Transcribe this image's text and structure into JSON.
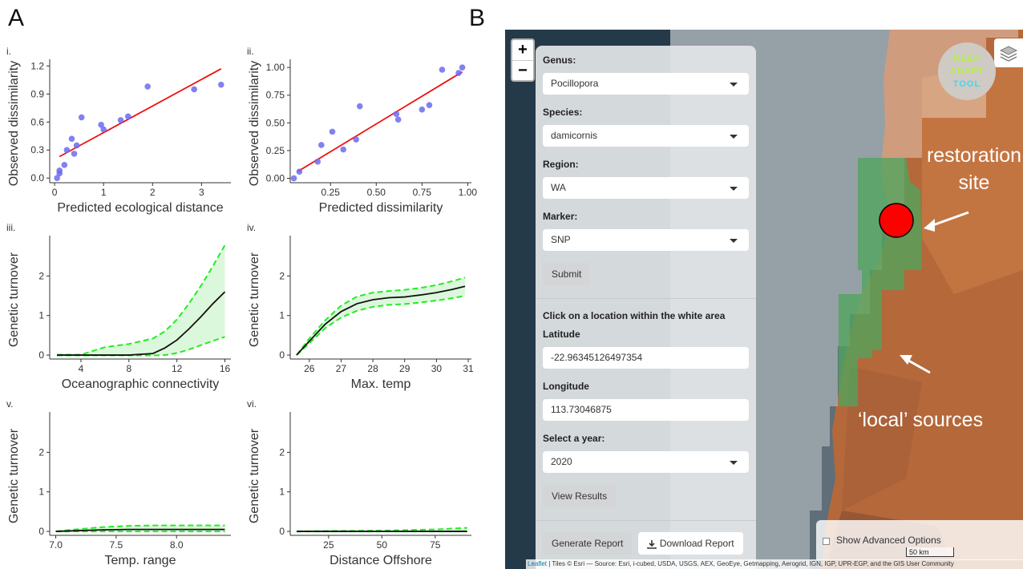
{
  "panel_labels": {
    "a": "A",
    "b": "B"
  },
  "colors": {
    "points": "#6b6bf0",
    "fit_line": "#f01010",
    "spline": "#111111",
    "ci_line": "#22ee22",
    "ci_fill": "#d8f7d8"
  },
  "chart_data": [
    {
      "id": "i",
      "panel_label": "i.",
      "type": "scatter",
      "xlabel": "Predicted ecological distance",
      "ylabel": "Observed dissimilarity",
      "xlim": [
        -0.1,
        3.6
      ],
      "ylim": [
        -0.05,
        1.22
      ],
      "xticks": [
        "0",
        "1",
        "2",
        "3"
      ],
      "yticks": [
        "0.0",
        "0.3",
        "0.6",
        "0.9",
        "1.2"
      ],
      "points": [
        [
          0.05,
          0.0
        ],
        [
          0.1,
          0.05
        ],
        [
          0.1,
          0.08
        ],
        [
          0.2,
          0.14
        ],
        [
          0.25,
          0.3
        ],
        [
          0.35,
          0.42
        ],
        [
          0.4,
          0.26
        ],
        [
          0.45,
          0.35
        ],
        [
          0.55,
          0.65
        ],
        [
          0.95,
          0.57
        ],
        [
          1.0,
          0.52
        ],
        [
          1.35,
          0.62
        ],
        [
          1.5,
          0.66
        ],
        [
          1.9,
          0.98
        ],
        [
          2.85,
          0.95
        ],
        [
          3.4,
          1.0
        ]
      ],
      "fit": [
        [
          0.1,
          0.23
        ],
        [
          3.4,
          1.17
        ]
      ]
    },
    {
      "id": "ii",
      "panel_label": "ii.",
      "type": "scatter",
      "xlabel": "Predicted dissimilarity",
      "ylabel": "Observed dissimilarity",
      "xlim": [
        0.03,
        1.02
      ],
      "ylim": [
        -0.04,
        1.03
      ],
      "xticks": [
        "0.25",
        "0.50",
        "0.75",
        "1.00"
      ],
      "yticks": [
        "0.00",
        "0.25",
        "0.50",
        "0.75",
        "1.00"
      ],
      "points": [
        [
          0.05,
          0.0
        ],
        [
          0.08,
          0.06
        ],
        [
          0.18,
          0.15
        ],
        [
          0.2,
          0.3
        ],
        [
          0.26,
          0.42
        ],
        [
          0.32,
          0.26
        ],
        [
          0.39,
          0.35
        ],
        [
          0.41,
          0.65
        ],
        [
          0.61,
          0.58
        ],
        [
          0.62,
          0.53
        ],
        [
          0.75,
          0.62
        ],
        [
          0.79,
          0.66
        ],
        [
          0.86,
          0.98
        ],
        [
          0.95,
          0.95
        ],
        [
          0.97,
          1.0
        ]
      ],
      "fit": [
        [
          0.07,
          0.06
        ],
        [
          0.97,
          0.96
        ]
      ]
    },
    {
      "id": "iii",
      "panel_label": "iii.",
      "type": "line",
      "xlabel": "Oceanographic connectivity",
      "ylabel": "Genetic turnover",
      "xlim": [
        1.4,
        16.5
      ],
      "ylim": [
        -0.1,
        2.9
      ],
      "xticks": [
        "4",
        "8",
        "12",
        "16"
      ],
      "yticks": [
        "0",
        "1",
        "2"
      ],
      "x": [
        2,
        4,
        6,
        8,
        10,
        11,
        12,
        13,
        14,
        15,
        16
      ],
      "mean": [
        0,
        0,
        0,
        0,
        0.04,
        0.18,
        0.38,
        0.66,
        0.97,
        1.3,
        1.6
      ],
      "upper": [
        0.01,
        0.01,
        0.2,
        0.28,
        0.42,
        0.6,
        0.9,
        1.3,
        1.75,
        2.25,
        2.78
      ],
      "lower": [
        -0.01,
        -0.01,
        -0.01,
        -0.01,
        -0.01,
        0,
        0.05,
        0.14,
        0.25,
        0.36,
        0.46
      ]
    },
    {
      "id": "iv",
      "panel_label": "iv.",
      "type": "line",
      "xlabel": "Max. temp",
      "ylabel": "Genetic turnover",
      "xlim": [
        25.4,
        31.1
      ],
      "ylim": [
        -0.1,
        2.9
      ],
      "xticks": [
        "26",
        "27",
        "28",
        "29",
        "30",
        "31"
      ],
      "yticks": [
        "0",
        "1",
        "2"
      ],
      "x": [
        25.6,
        26,
        26.5,
        27,
        27.5,
        28,
        28.5,
        29,
        29.5,
        30,
        30.5,
        30.9
      ],
      "mean": [
        0,
        0.35,
        0.78,
        1.1,
        1.3,
        1.4,
        1.45,
        1.47,
        1.52,
        1.58,
        1.66,
        1.74
      ],
      "upper": [
        0,
        0.42,
        0.88,
        1.25,
        1.48,
        1.58,
        1.62,
        1.65,
        1.7,
        1.77,
        1.87,
        1.96
      ],
      "lower": [
        0,
        0.3,
        0.68,
        0.95,
        1.12,
        1.22,
        1.27,
        1.29,
        1.33,
        1.38,
        1.44,
        1.5
      ]
    },
    {
      "id": "v",
      "panel_label": "v.",
      "type": "line",
      "xlabel": "Temp. range",
      "ylabel": "Genetic turnover",
      "xlim": [
        6.95,
        8.45
      ],
      "ylim": [
        -0.1,
        2.9
      ],
      "xticks": [
        "7.0",
        "7.5",
        "8.0"
      ],
      "yticks": [
        "0",
        "1",
        "2"
      ],
      "x": [
        7.0,
        7.2,
        7.4,
        7.6,
        7.8,
        8.0,
        8.2,
        8.4
      ],
      "mean": [
        0,
        0.02,
        0.04,
        0.05,
        0.05,
        0.05,
        0.05,
        0.05
      ],
      "upper": [
        0,
        0.06,
        0.11,
        0.14,
        0.15,
        0.15,
        0.15,
        0.15
      ],
      "lower": [
        0,
        0,
        0,
        0,
        0,
        0,
        0,
        0
      ]
    },
    {
      "id": "vi",
      "panel_label": "vi.",
      "type": "line",
      "xlabel": "Distance Offshore",
      "ylabel": "Genetic turnover",
      "xlim": [
        7,
        92
      ],
      "ylim": [
        -0.1,
        2.9
      ],
      "xticks": [
        "25",
        "50",
        "75"
      ],
      "yticks": [
        "0",
        "1",
        "2"
      ],
      "x": [
        10,
        25,
        50,
        75,
        90
      ],
      "mean": [
        0,
        0,
        0,
        0,
        0
      ],
      "upper": [
        0,
        0.01,
        0.02,
        0.05,
        0.09
      ],
      "lower": [
        0,
        0,
        0,
        0,
        0
      ]
    }
  ],
  "map": {
    "zoom_in": "+",
    "zoom_out": "−",
    "logo": {
      "line1": "REEF",
      "line2": "ADAPT",
      "line3": "TOOL"
    },
    "form": {
      "genus_label": "Genus:",
      "genus_value": "Pocillopora",
      "species_label": "Species:",
      "species_value": "damicornis",
      "region_label": "Region:",
      "region_value": "WA",
      "marker_label": "Marker:",
      "marker_value": "SNP",
      "submit": "Submit",
      "instruction": "Click on a location within the white area",
      "latitude_label": "Latitude",
      "latitude_value": "-22.96345126497354",
      "longitude_label": "Longitude",
      "longitude_value": "113.73046875",
      "year_label": "Select a year:",
      "year_value": "2020",
      "view_results": "View Results",
      "generate_report": "Generate Report",
      "download_report": "Download Report"
    },
    "annotation_restoration_1": "restoration",
    "annotation_restoration_2": "site",
    "annotation_local": "‘local’ sources",
    "advanced_options": "Show Advanced Options",
    "scale": "50 km",
    "attribution_leaflet": "Leaflet",
    "attribution_rest": " | Tiles © Esri — Source: Esri, i-cubed, USDA, USGS, AEX, GeoEye, Getmapping, Aerogrid, IGN, IGP, UPR-EGP, and the GIS User Community"
  }
}
